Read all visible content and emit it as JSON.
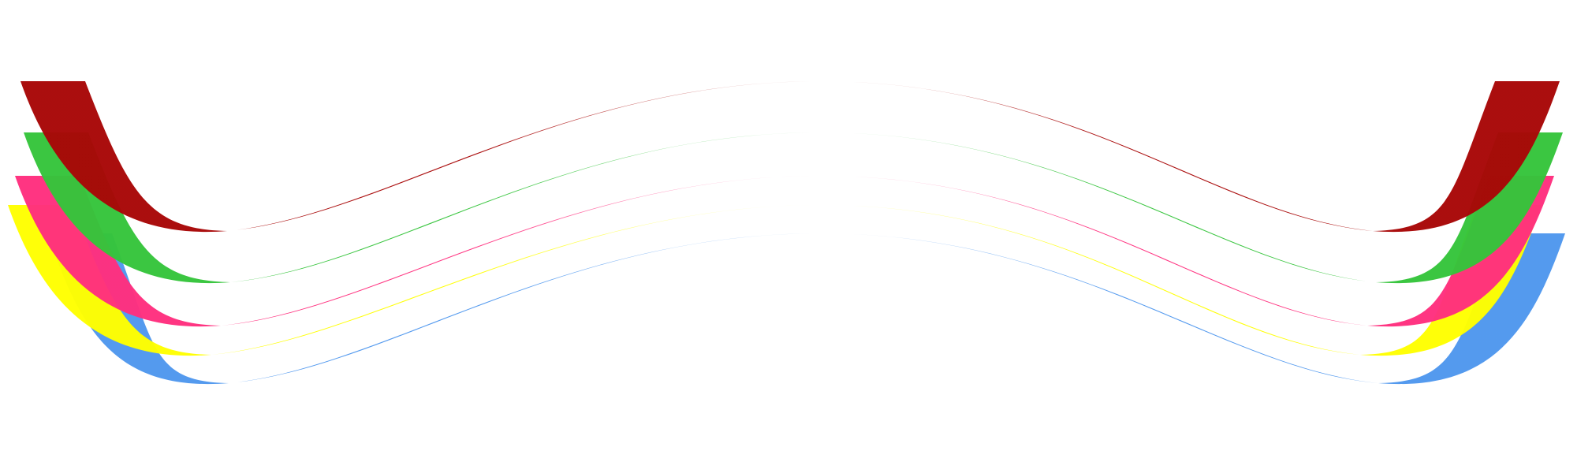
{
  "bands": [
    {
      "id": "blue",
      "color": "#4f97ee"
    },
    {
      "id": "yellow",
      "color": "#ffff00"
    },
    {
      "id": "pink",
      "color": "#ff2f7e"
    },
    {
      "id": "green",
      "color": "#35c43b"
    },
    {
      "id": "red",
      "color": "#a80707"
    }
  ]
}
